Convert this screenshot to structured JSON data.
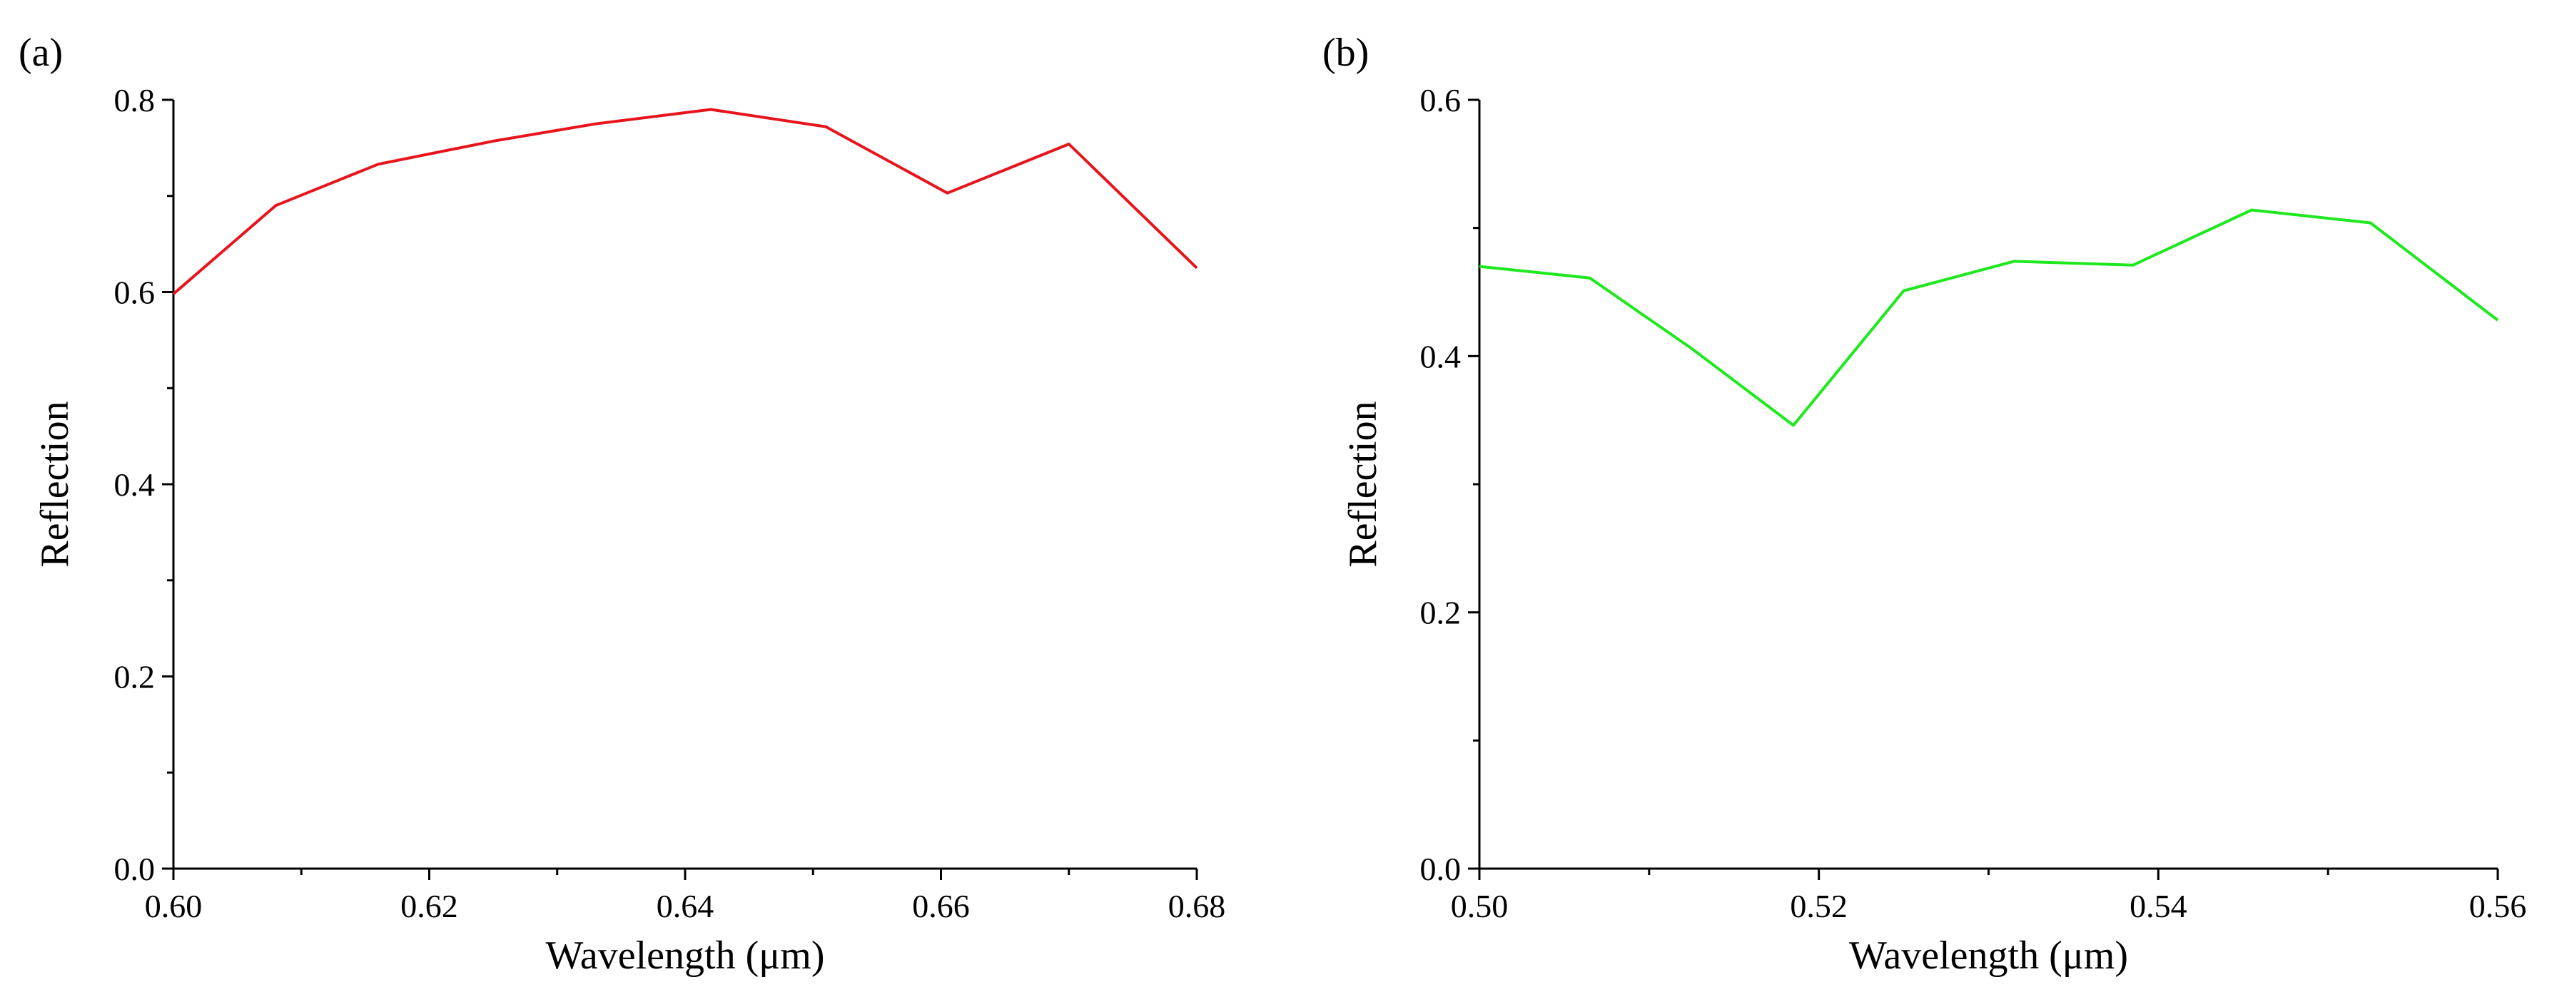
{
  "chart_data": [
    {
      "type": "line",
      "panel_label": "(a)",
      "xlabel": "Wavelength (μm)",
      "ylabel": "Reflection",
      "xlim": [
        0.6,
        0.68
      ],
      "ylim": [
        0.0,
        0.8
      ],
      "xticks": [
        0.6,
        0.62,
        0.64,
        0.66,
        0.68
      ],
      "xtick_labels": [
        "0.60",
        "0.62",
        "0.64",
        "0.66",
        "0.68"
      ],
      "yticks": [
        0.0,
        0.2,
        0.4,
        0.6,
        0.8
      ],
      "ytick_labels": [
        "0.0",
        "0.2",
        "0.4",
        "0.6",
        "0.8"
      ],
      "grid": false,
      "series": [
        {
          "name": "reflection",
          "color": "#e8141c",
          "x": [
            0.6,
            0.608,
            0.616,
            0.625,
            0.633,
            0.642,
            0.651,
            0.6605,
            0.67,
            0.68
          ],
          "y": [
            0.598,
            0.69,
            0.733,
            0.757,
            0.775,
            0.79,
            0.772,
            0.703,
            0.754,
            0.625
          ]
        }
      ]
    },
    {
      "type": "line",
      "panel_label": "(b)",
      "xlabel": "Wavelength (μm)",
      "ylabel": "Reflection",
      "xlim": [
        0.5,
        0.56
      ],
      "ylim": [
        0.0,
        0.6
      ],
      "xticks": [
        0.5,
        0.52,
        0.54,
        0.56
      ],
      "xtick_labels": [
        "0.50",
        "0.52",
        "0.54",
        "0.56"
      ],
      "yticks": [
        0.0,
        0.2,
        0.4,
        0.6
      ],
      "ytick_labels": [
        "0.0",
        "0.2",
        "0.4",
        "0.6"
      ],
      "grid": false,
      "series": [
        {
          "name": "reflection",
          "color": "#1ee81e",
          "x": [
            0.5,
            0.5065,
            0.5125,
            0.5185,
            0.525,
            0.5315,
            0.5385,
            0.5455,
            0.5525,
            0.56
          ],
          "y": [
            0.47,
            0.461,
            0.406,
            0.346,
            0.451,
            0.474,
            0.471,
            0.514,
            0.504,
            0.428
          ]
        }
      ]
    }
  ]
}
